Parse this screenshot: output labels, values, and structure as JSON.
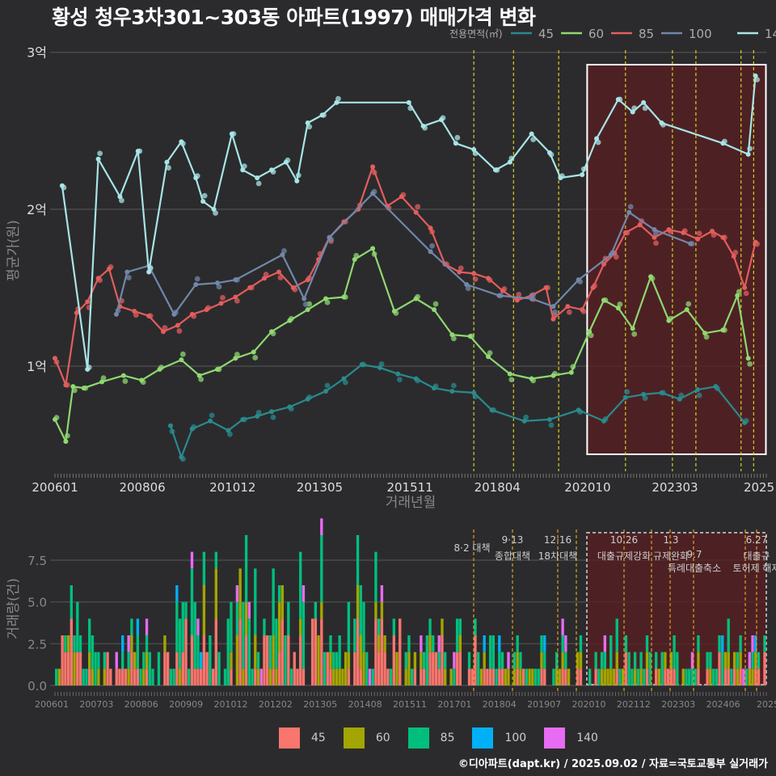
{
  "title": "황성 청우3차301~303동 아파트(1997) 매매가격 변화",
  "credit": "©디아파트(dapt.kr) / 2025.09.02 / 자료=국토교통부 실거래가",
  "colors": {
    "background": "#2b2b2d",
    "grid": "#4a4a4c",
    "s45": "#2a8a8c",
    "s60": "#8fd870",
    "s85": "#e35d5d",
    "s100": "#7287aa",
    "s140": "#a8e4e6",
    "v45": "#f8766d",
    "v60": "#a3a500",
    "v85": "#00bf7d",
    "v100": "#00b0f6",
    "v140": "#e76bf3",
    "policy_line": "#d8d020",
    "highlight": "#5a1f22"
  },
  "chart_data": [
    {
      "type": "line",
      "name": "price",
      "legend_title": "전용면적(㎡)",
      "ylabel": "평균가(원)",
      "xlabel": "거래년월",
      "y_ticks": [
        {
          "v": 1,
          "label": "1억"
        },
        {
          "v": 2,
          "label": "2억"
        },
        {
          "v": 3,
          "label": "3억"
        }
      ],
      "x_ticks": [
        "200601",
        "200806",
        "201012",
        "201305",
        "201511",
        "201804",
        "202010",
        "202303",
        "2025"
      ],
      "x_range": [
        2006.0,
        2025.7
      ],
      "y_range": [
        0.33,
        3.05
      ],
      "highlight": [
        2020.75,
        2025.7
      ],
      "policy_lines": [
        2017.6,
        2018.7,
        2019.95,
        2021.8,
        2023.1,
        2023.75,
        2025.0,
        2025.35
      ],
      "series": [
        {
          "name": "45",
          "color_key": "s45",
          "points": [
            [
              2009.2,
              0.62
            ],
            [
              2009.5,
              0.42
            ],
            [
              2009.8,
              0.6
            ],
            [
              2010.3,
              0.65
            ],
            [
              2010.8,
              0.59
            ],
            [
              2011.2,
              0.66
            ],
            [
              2011.6,
              0.68
            ],
            [
              2012.0,
              0.71
            ],
            [
              2012.5,
              0.74
            ],
            [
              2013.0,
              0.79
            ],
            [
              2013.5,
              0.84
            ],
            [
              2014.0,
              0.92
            ],
            [
              2014.5,
              1.01
            ],
            [
              2015.0,
              0.99
            ],
            [
              2015.5,
              0.95
            ],
            [
              2016.0,
              0.92
            ],
            [
              2016.5,
              0.86
            ],
            [
              2017.0,
              0.84
            ],
            [
              2017.6,
              0.83
            ],
            [
              2018.1,
              0.72
            ],
            [
              2019.0,
              0.65
            ],
            [
              2019.7,
              0.66
            ],
            [
              2020.5,
              0.72
            ],
            [
              2021.2,
              0.65
            ],
            [
              2021.8,
              0.8
            ],
            [
              2022.3,
              0.82
            ],
            [
              2022.8,
              0.83
            ],
            [
              2023.3,
              0.79
            ],
            [
              2023.8,
              0.85
            ],
            [
              2024.3,
              0.87
            ],
            [
              2025.1,
              0.64
            ]
          ]
        },
        {
          "name": "60",
          "color_key": "s60",
          "points": [
            [
              2006.0,
              0.66
            ],
            [
              2006.3,
              0.52
            ],
            [
              2006.5,
              0.87
            ],
            [
              2006.8,
              0.86
            ],
            [
              2007.3,
              0.9
            ],
            [
              2007.9,
              0.94
            ],
            [
              2008.4,
              0.91
            ],
            [
              2008.9,
              0.98
            ],
            [
              2009.5,
              1.04
            ],
            [
              2010.0,
              0.94
            ],
            [
              2010.5,
              0.98
            ],
            [
              2011.0,
              1.05
            ],
            [
              2011.5,
              1.09
            ],
            [
              2012.0,
              1.22
            ],
            [
              2012.5,
              1.29
            ],
            [
              2013.0,
              1.36
            ],
            [
              2013.5,
              1.43
            ],
            [
              2014.0,
              1.44
            ],
            [
              2014.3,
              1.68
            ],
            [
              2014.8,
              1.75
            ],
            [
              2015.4,
              1.35
            ],
            [
              2016.0,
              1.43
            ],
            [
              2016.5,
              1.36
            ],
            [
              2017.0,
              1.2
            ],
            [
              2017.5,
              1.19
            ],
            [
              2018.0,
              1.06
            ],
            [
              2018.6,
              0.95
            ],
            [
              2019.2,
              0.92
            ],
            [
              2019.8,
              0.94
            ],
            [
              2020.3,
              0.96
            ],
            [
              2020.8,
              1.22
            ],
            [
              2021.2,
              1.42
            ],
            [
              2021.6,
              1.37
            ],
            [
              2022.0,
              1.24
            ],
            [
              2022.5,
              1.57
            ],
            [
              2023.0,
              1.29
            ],
            [
              2023.5,
              1.36
            ],
            [
              2024.0,
              1.21
            ],
            [
              2024.5,
              1.23
            ],
            [
              2024.9,
              1.45
            ],
            [
              2025.2,
              1.05
            ]
          ]
        },
        {
          "name": "85",
          "color_key": "s85",
          "points": [
            [
              2006.0,
              1.05
            ],
            [
              2006.3,
              0.88
            ],
            [
              2006.6,
              1.34
            ],
            [
              2006.9,
              1.41
            ],
            [
              2007.2,
              1.56
            ],
            [
              2007.5,
              1.62
            ],
            [
              2007.8,
              1.38
            ],
            [
              2008.2,
              1.35
            ],
            [
              2008.6,
              1.32
            ],
            [
              2009.0,
              1.22
            ],
            [
              2009.4,
              1.26
            ],
            [
              2009.8,
              1.33
            ],
            [
              2010.2,
              1.36
            ],
            [
              2010.6,
              1.4
            ],
            [
              2011.0,
              1.44
            ],
            [
              2011.4,
              1.5
            ],
            [
              2011.8,
              1.56
            ],
            [
              2012.2,
              1.6
            ],
            [
              2012.6,
              1.5
            ],
            [
              2013.0,
              1.55
            ],
            [
              2013.3,
              1.68
            ],
            [
              2013.6,
              1.82
            ],
            [
              2014.0,
              1.92
            ],
            [
              2014.4,
              2.0
            ],
            [
              2014.8,
              2.27
            ],
            [
              2015.2,
              2.02
            ],
            [
              2015.6,
              2.08
            ],
            [
              2016.0,
              1.98
            ],
            [
              2016.4,
              1.88
            ],
            [
              2016.8,
              1.65
            ],
            [
              2017.2,
              1.6
            ],
            [
              2017.6,
              1.59
            ],
            [
              2018.0,
              1.56
            ],
            [
              2018.4,
              1.48
            ],
            [
              2018.8,
              1.42
            ],
            [
              2019.2,
              1.45
            ],
            [
              2019.6,
              1.5
            ],
            [
              2019.8,
              1.3
            ],
            [
              2020.2,
              1.38
            ],
            [
              2020.6,
              1.36
            ],
            [
              2020.9,
              1.5
            ],
            [
              2021.2,
              1.65
            ],
            [
              2021.5,
              1.72
            ],
            [
              2021.8,
              1.85
            ],
            [
              2022.2,
              1.9
            ],
            [
              2022.6,
              1.82
            ],
            [
              2023.0,
              1.87
            ],
            [
              2023.4,
              1.85
            ],
            [
              2023.8,
              1.81
            ],
            [
              2024.2,
              1.86
            ],
            [
              2024.5,
              1.82
            ],
            [
              2024.8,
              1.7
            ],
            [
              2025.1,
              1.5
            ],
            [
              2025.4,
              1.79
            ]
          ]
        },
        {
          "name": "100",
          "color_key": "s100",
          "points": [
            [
              2007.7,
              1.33
            ],
            [
              2008.0,
              1.6
            ],
            [
              2008.6,
              1.64
            ],
            [
              2009.3,
              1.33
            ],
            [
              2009.9,
              1.52
            ],
            [
              2010.5,
              1.53
            ],
            [
              2011.0,
              1.55
            ],
            [
              2012.3,
              1.71
            ],
            [
              2012.9,
              1.43
            ],
            [
              2013.6,
              1.82
            ],
            [
              2014.8,
              2.1
            ],
            [
              2016.4,
              1.73
            ],
            [
              2017.4,
              1.52
            ],
            [
              2018.3,
              1.45
            ],
            [
              2019.2,
              1.43
            ],
            [
              2019.8,
              1.38
            ],
            [
              2020.5,
              1.55
            ],
            [
              2021.4,
              1.71
            ],
            [
              2021.9,
              1.98
            ],
            [
              2022.6,
              1.87
            ],
            [
              2023.6,
              1.78
            ]
          ]
        },
        {
          "name": "140",
          "color_key": "s140",
          "points": [
            [
              2006.2,
              2.15
            ],
            [
              2006.9,
              0.98
            ],
            [
              2007.2,
              2.32
            ],
            [
              2007.8,
              2.08
            ],
            [
              2008.3,
              2.37
            ],
            [
              2008.6,
              1.6
            ],
            [
              2009.1,
              2.3
            ],
            [
              2009.5,
              2.43
            ],
            [
              2009.9,
              2.2
            ],
            [
              2010.1,
              2.05
            ],
            [
              2010.4,
              2.0
            ],
            [
              2010.9,
              2.48
            ],
            [
              2011.2,
              2.25
            ],
            [
              2011.6,
              2.2
            ],
            [
              2012.0,
              2.25
            ],
            [
              2012.4,
              2.3
            ],
            [
              2012.7,
              2.18
            ],
            [
              2013.0,
              2.55
            ],
            [
              2013.4,
              2.6
            ],
            [
              2013.8,
              2.68
            ],
            [
              2015.8,
              2.68
            ],
            [
              2016.2,
              2.53
            ],
            [
              2016.7,
              2.57
            ],
            [
              2017.1,
              2.42
            ],
            [
              2017.6,
              2.38
            ],
            [
              2018.2,
              2.25
            ],
            [
              2018.6,
              2.3
            ],
            [
              2019.2,
              2.48
            ],
            [
              2019.7,
              2.36
            ],
            [
              2020.0,
              2.2
            ],
            [
              2020.6,
              2.22
            ],
            [
              2021.0,
              2.45
            ],
            [
              2021.6,
              2.7
            ],
            [
              2022.0,
              2.62
            ],
            [
              2022.3,
              2.68
            ],
            [
              2022.8,
              2.55
            ],
            [
              2024.5,
              2.42
            ],
            [
              2025.2,
              2.35
            ],
            [
              2025.4,
              2.85
            ]
          ]
        }
      ]
    },
    {
      "type": "bar",
      "name": "volume",
      "stacked": true,
      "ylabel": "거래량(건)",
      "y_ticks": [
        "0.0",
        "2.5",
        "5.0",
        "7.5"
      ],
      "y_range": [
        0,
        9
      ],
      "x_ticks": [
        "200601",
        "200703",
        "200806",
        "200909",
        "201012",
        "201202",
        "201305",
        "201408",
        "201511",
        "201701",
        "201804",
        "201907",
        "202010",
        "202112",
        "202303",
        "202406",
        "2025"
      ],
      "policy_labels": [
        {
          "date": "8·2",
          "name": "대책"
        },
        {
          "date": "9·13",
          "name": "종합대책"
        },
        {
          "date": "12·16",
          "name": "18차대책"
        },
        {
          "date": "10.26",
          "name": "대출규제강화"
        },
        {
          "date": "1.3",
          "name": "규제완화"
        },
        {
          "date": "9.7",
          "name": "특례대출축소"
        },
        {
          "date": "6.27",
          "name": "대출규"
        },
        {
          "date": "",
          "name": "토허제 해제"
        }
      ],
      "legend": [
        "45",
        "60",
        "85",
        "100",
        "140"
      ]
    }
  ]
}
